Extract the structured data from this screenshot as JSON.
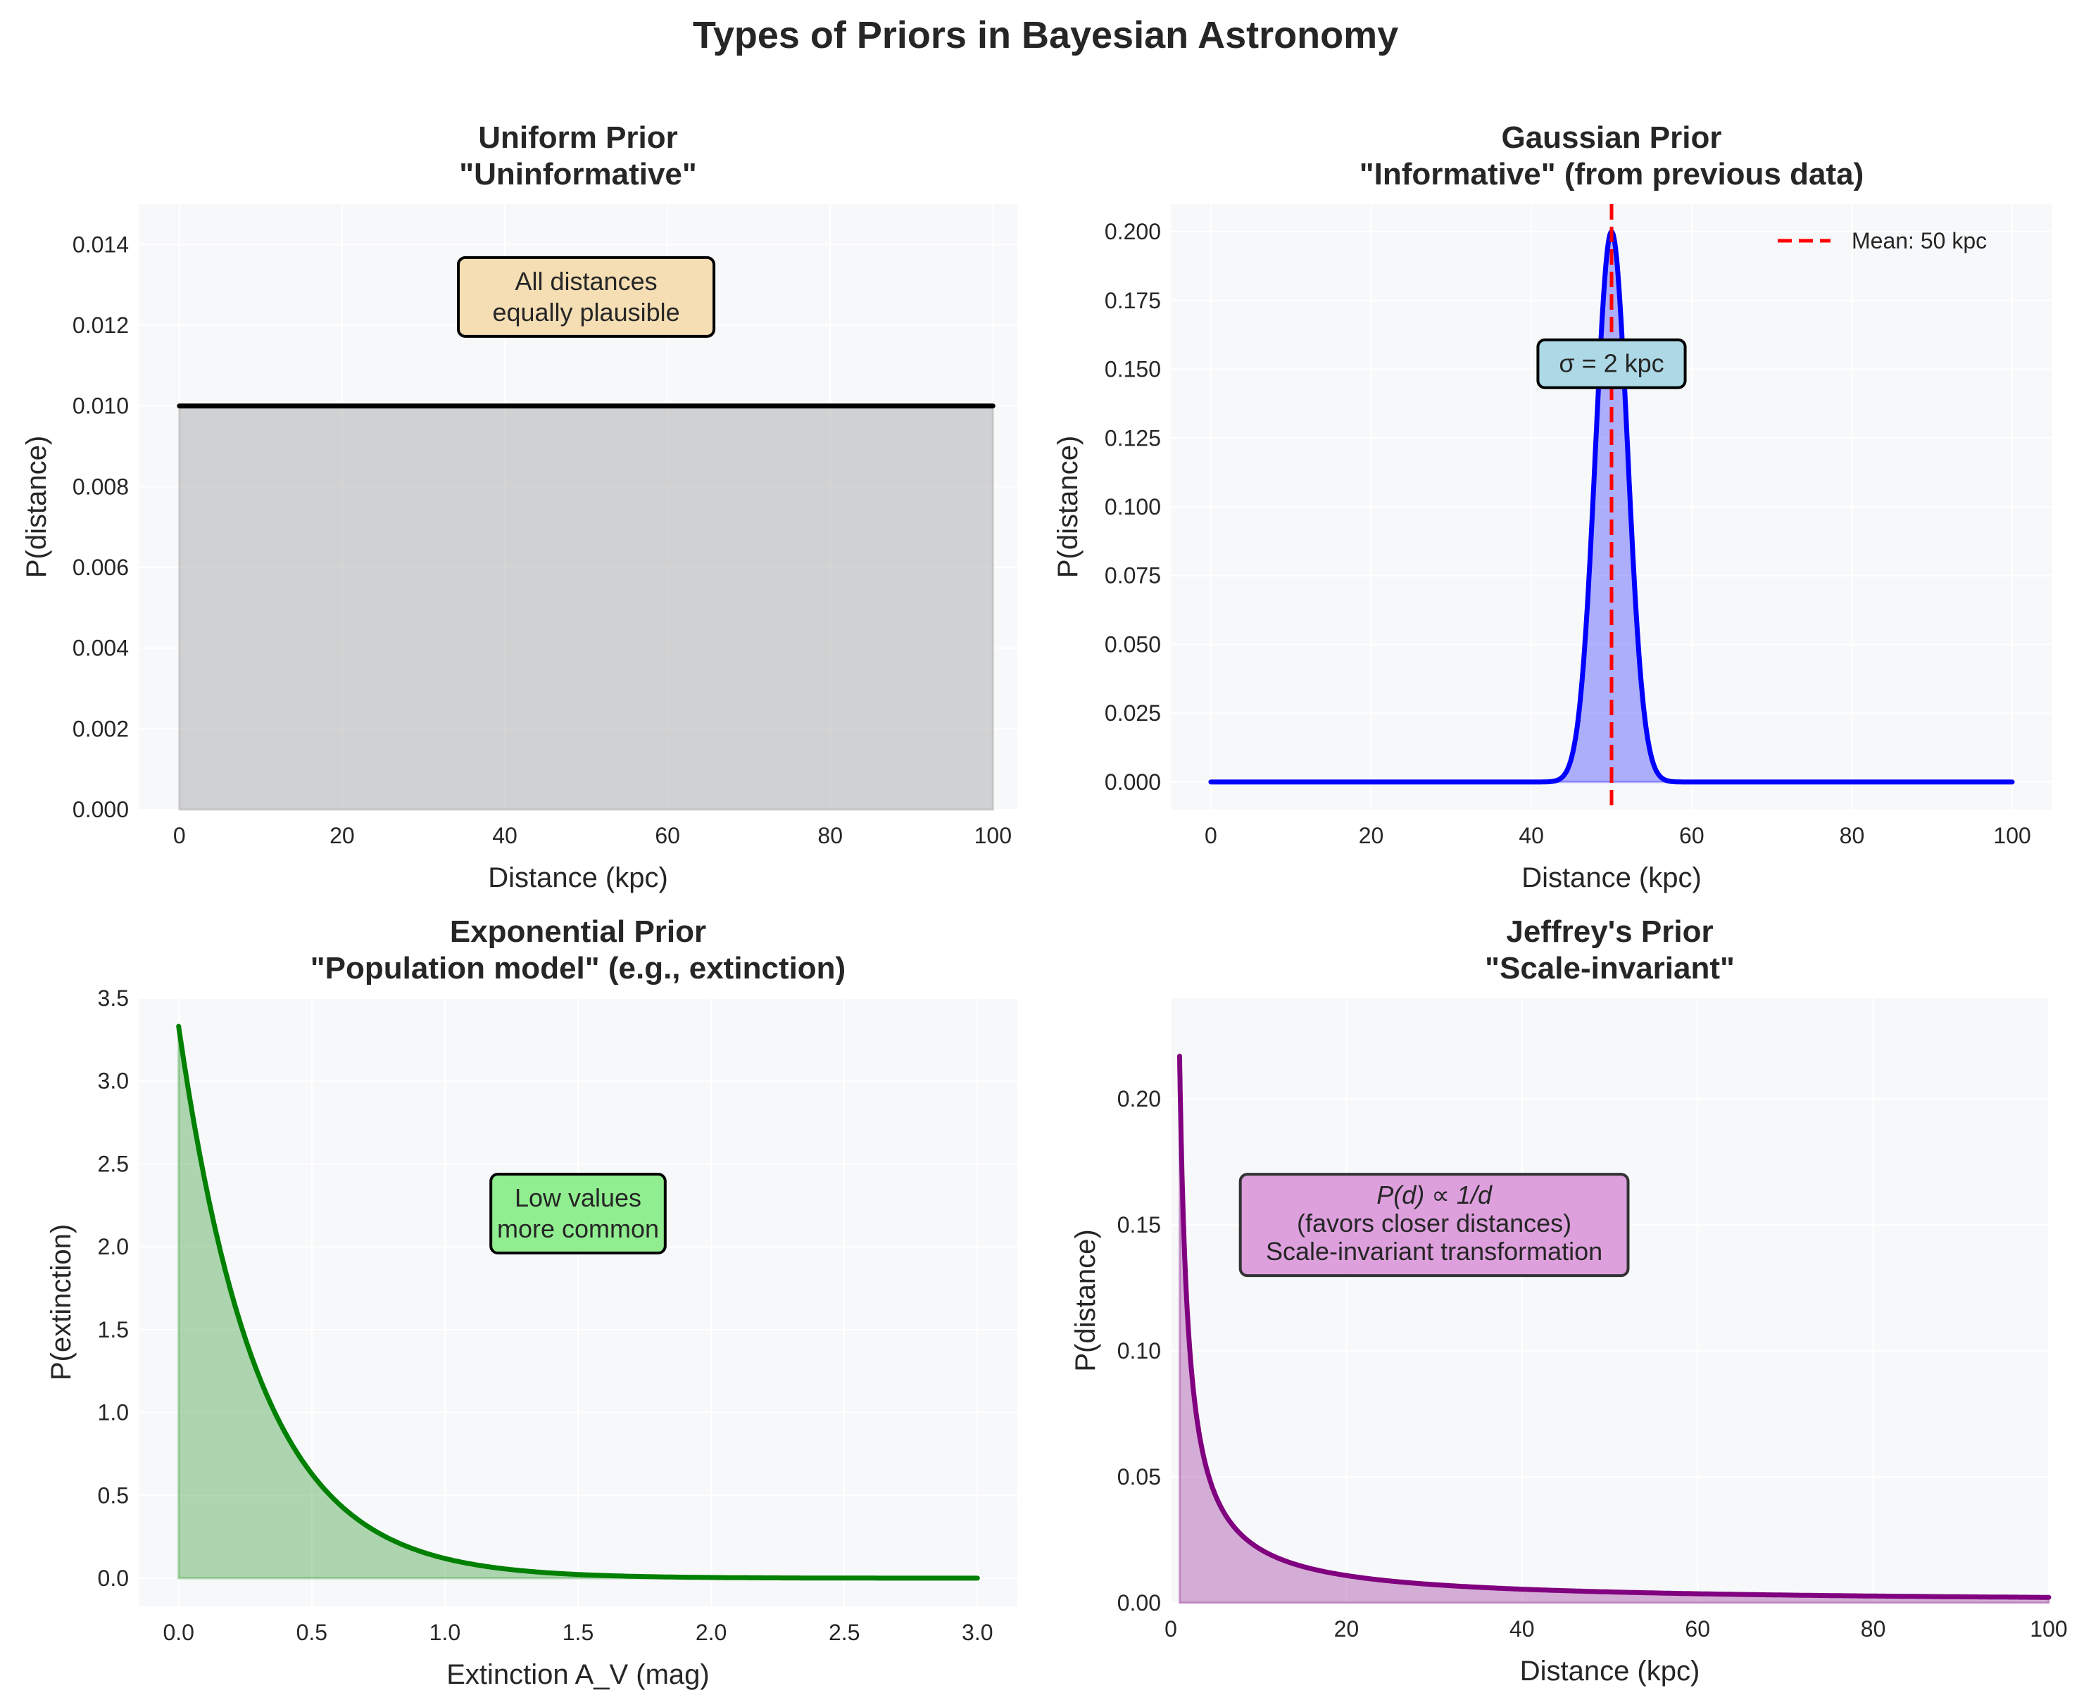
{
  "figure": {
    "title": "Types of Priors in Bayesian Astronomy",
    "background": "#ffffff",
    "axes_facecolor": "#f7f8fa"
  },
  "chart_data": [
    {
      "id": "uniform",
      "type": "area",
      "title_line1": "Uniform Prior",
      "title_line2": "\"Uninformative\"",
      "xlabel": "Distance (kpc)",
      "ylabel": "P(distance)",
      "xlim": [
        -5,
        103
      ],
      "ylim": [
        0,
        0.015
      ],
      "xticks": [
        0,
        20,
        40,
        60,
        80,
        100
      ],
      "xtick_labels": [
        "0",
        "20",
        "40",
        "60",
        "80",
        "100"
      ],
      "yticks": [
        0.0,
        0.002,
        0.004,
        0.006,
        0.008,
        0.01,
        0.012,
        0.014
      ],
      "ytick_labels": [
        "0.000",
        "0.002",
        "0.004",
        "0.006",
        "0.008",
        "0.010",
        "0.012",
        "0.014"
      ],
      "grid": true,
      "series": [
        {
          "name": "Uniform prior",
          "function": "uniform",
          "x": [
            0,
            100
          ],
          "y": [
            0.01,
            0.01
          ],
          "color": "#000000",
          "fill_color": "#a9a9a9",
          "fill_alpha": 0.5
        }
      ],
      "annotation": {
        "text_lines": [
          "All distances",
          "equally plausible"
        ],
        "x": 50,
        "y": 0.0127,
        "facecolor": "#f5deb3"
      }
    },
    {
      "id": "gaussian",
      "type": "area",
      "title_line1": "Gaussian Prior",
      "title_line2": "\"Informative\" (from previous data)",
      "xlabel": "Distance (kpc)",
      "ylabel": "P(distance)",
      "xlim": [
        -5,
        105
      ],
      "ylim": [
        -0.01,
        0.21
      ],
      "xticks": [
        0,
        20,
        40,
        60,
        80,
        100
      ],
      "xtick_labels": [
        "0",
        "20",
        "40",
        "60",
        "80",
        "100"
      ],
      "yticks": [
        0.0,
        0.025,
        0.05,
        0.075,
        0.1,
        0.125,
        0.15,
        0.175,
        0.2
      ],
      "ytick_labels": [
        "0.000",
        "0.025",
        "0.050",
        "0.075",
        "0.100",
        "0.125",
        "0.150",
        "0.175",
        "0.200"
      ],
      "grid": true,
      "series": [
        {
          "name": "Gaussian prior",
          "function": "gaussian",
          "mean": 50,
          "sigma": 2,
          "x_range": [
            0,
            100
          ],
          "peak": 0.2,
          "color": "#0000ff",
          "fill_color": "#0000ff",
          "fill_alpha": 0.3
        }
      ],
      "vline": {
        "x": 50,
        "color": "#ff0000",
        "label": "Mean: 50 kpc"
      },
      "legend": {
        "placement": "top-right",
        "entries": [
          "Mean: 50 kpc"
        ]
      },
      "annotation": {
        "text_lines": [
          "σ = 2 kpc"
        ],
        "x": 50,
        "y": 0.152,
        "facecolor": "#add8e6"
      }
    },
    {
      "id": "exponential",
      "type": "area",
      "title_line1": "Exponential Prior",
      "title_line2": "\"Population model\" (e.g., extinction)",
      "xlabel": "Extinction A_V (mag)",
      "ylabel": "P(extinction)",
      "xlim": [
        -0.15,
        3.15
      ],
      "ylim": [
        -0.17,
        3.5
      ],
      "xticks": [
        0.0,
        0.5,
        1.0,
        1.5,
        2.0,
        2.5,
        3.0
      ],
      "xtick_labels": [
        "0.0",
        "0.5",
        "1.0",
        "1.5",
        "2.0",
        "2.5",
        "3.0"
      ],
      "yticks": [
        0.0,
        0.5,
        1.0,
        1.5,
        2.0,
        2.5,
        3.0,
        3.5
      ],
      "ytick_labels": [
        "0.0",
        "0.5",
        "1.0",
        "1.5",
        "2.0",
        "2.5",
        "3.0",
        "3.5"
      ],
      "grid": true,
      "series": [
        {
          "name": "Exponential prior",
          "function": "exponential",
          "rate": 3.33,
          "x_range": [
            0,
            3
          ],
          "peak": 3.33,
          "color": "#008000",
          "fill_color": "#008000",
          "fill_alpha": 0.3
        }
      ],
      "annotation": {
        "text_lines": [
          "Low values",
          "more common"
        ],
        "x": 1.5,
        "y": 2.2,
        "facecolor": "#90ee90"
      }
    },
    {
      "id": "jeffreys",
      "type": "area",
      "title_line1": "Jeffrey's Prior",
      "title_line2": "\"Scale-invariant\"",
      "xlabel": "Distance (kpc)",
      "ylabel": "P(distance)",
      "xlim": [
        0,
        100
      ],
      "ylim": [
        0,
        0.24
      ],
      "xticks": [
        0,
        20,
        40,
        60,
        80,
        100
      ],
      "xtick_labels": [
        "0",
        "20",
        "40",
        "60",
        "80",
        "100"
      ],
      "yticks": [
        0.0,
        0.05,
        0.1,
        0.15,
        0.2
      ],
      "ytick_labels": [
        "0.00",
        "0.05",
        "0.10",
        "0.15",
        "0.20"
      ],
      "grid": true,
      "series": [
        {
          "name": "Jeffrey's prior",
          "function": "inverse",
          "x_range": [
            1,
            100
          ],
          "peak": 0.217,
          "color": "#800080",
          "fill_color": "#800080",
          "fill_alpha": 0.3
        }
      ],
      "annotation": {
        "text_lines": [
          "P(d) ∝ 1/d",
          "(favors closer distances)",
          "Scale-invariant transformation"
        ],
        "x": 30,
        "y": 0.15,
        "facecolor": "#dda0dd"
      }
    }
  ]
}
